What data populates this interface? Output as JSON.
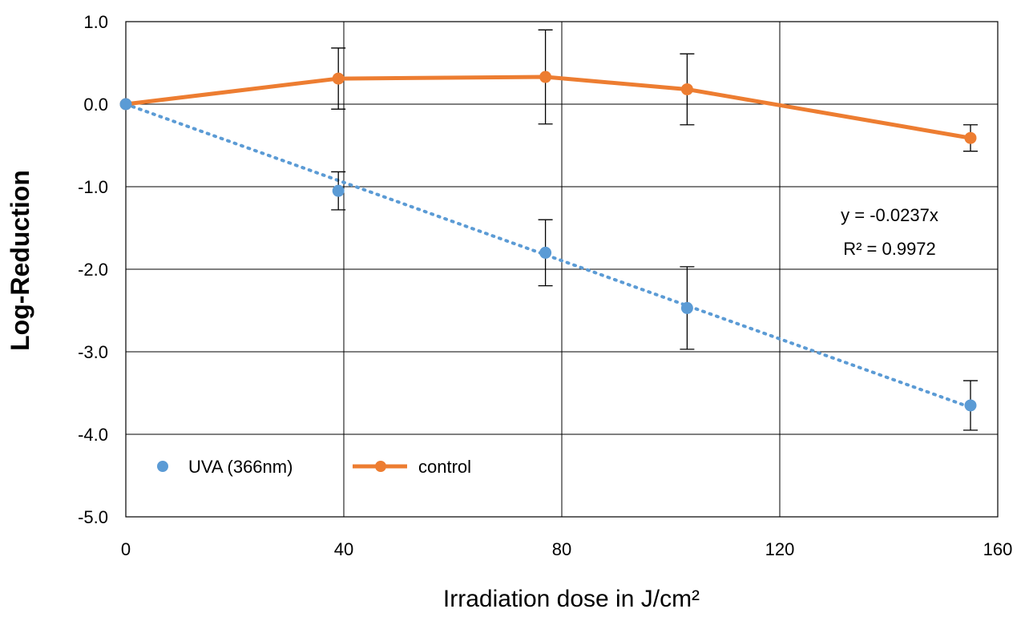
{
  "chart_data": {
    "type": "line",
    "title": "",
    "xlabel": "Irradiation dose in J/cm²",
    "ylabel": "Log-Reduction",
    "xlim": [
      0,
      160
    ],
    "ylim": [
      -5.0,
      1.0
    ],
    "xticks": [
      0,
      40,
      80,
      120,
      160
    ],
    "xtick_labels": [
      "0",
      "40",
      "80",
      "120",
      "160"
    ],
    "yticks": [
      1.0,
      0.0,
      -1.0,
      -2.0,
      -3.0,
      -4.0,
      -5.0
    ],
    "ytick_labels": [
      "1.0",
      "0.0",
      "-1.0",
      "-2.0",
      "-3.0",
      "-4.0",
      "-5.0"
    ],
    "grid": true,
    "legend_position": "bottom-left",
    "series": [
      {
        "name": "UVA (366nm)",
        "style": "markers",
        "color": "#5B9BD5",
        "x": [
          0,
          39,
          77,
          103,
          155
        ],
        "y": [
          0.0,
          -1.05,
          -1.8,
          -2.47,
          -3.65
        ],
        "err": [
          0.0,
          0.23,
          0.4,
          0.5,
          0.3
        ]
      },
      {
        "name": "control",
        "style": "line-markers",
        "color": "#ED7D31",
        "x": [
          0,
          39,
          77,
          103,
          155
        ],
        "y": [
          0.0,
          0.31,
          0.33,
          0.18,
          -0.41
        ],
        "err": [
          0.0,
          0.37,
          0.57,
          0.43,
          0.16
        ]
      }
    ],
    "trendline": {
      "series": "UVA (366nm)",
      "slope": -0.0237,
      "x_range": [
        0,
        155
      ],
      "color": "#5B9BD5",
      "equation": "y = -0.0237x",
      "r2_label": "R² = 0.9972"
    }
  }
}
